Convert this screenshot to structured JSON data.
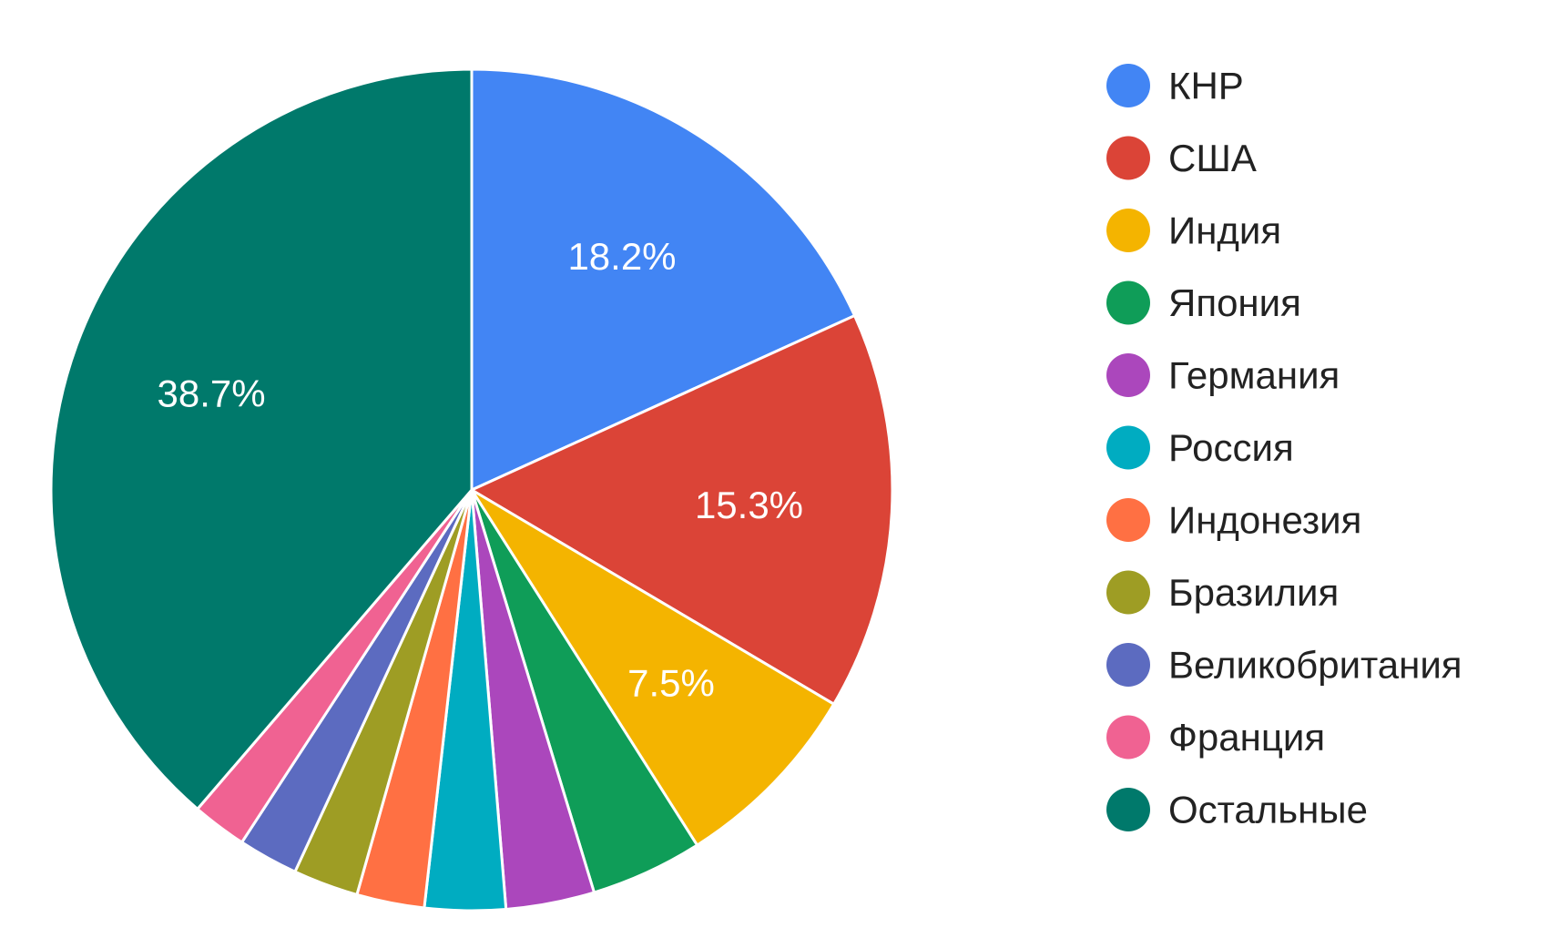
{
  "chart_data": {
    "type": "pie",
    "title": "",
    "start_angle_deg": 0,
    "direction": "clockwise",
    "legend_position": "right",
    "slices": [
      {
        "name": "КНР",
        "value": 18.2,
        "label": "18.2%",
        "color": "#4285f4"
      },
      {
        "name": "США",
        "value": 15.3,
        "label": "15.3%",
        "color": "#db4437"
      },
      {
        "name": "Индия",
        "value": 7.5,
        "label": "7.5%",
        "color": "#f4b400"
      },
      {
        "name": "Япония",
        "value": 4.3,
        "label": "",
        "color": "#0f9d58"
      },
      {
        "name": "Германия",
        "value": 3.4,
        "label": "",
        "color": "#ab47bc"
      },
      {
        "name": "Россия",
        "value": 3.1,
        "label": "",
        "color": "#00acc1"
      },
      {
        "name": "Индонезия",
        "value": 2.6,
        "label": "",
        "color": "#ff7043"
      },
      {
        "name": "Бразилия",
        "value": 2.5,
        "label": "",
        "color": "#9e9d24"
      },
      {
        "name": "Великобритания",
        "value": 2.3,
        "label": "",
        "color": "#5c6bc0"
      },
      {
        "name": "Франция",
        "value": 2.1,
        "label": "",
        "color": "#f06292"
      },
      {
        "name": "Остальные",
        "value": 38.7,
        "label": "38.7%",
        "color": "#00796b"
      }
    ]
  }
}
